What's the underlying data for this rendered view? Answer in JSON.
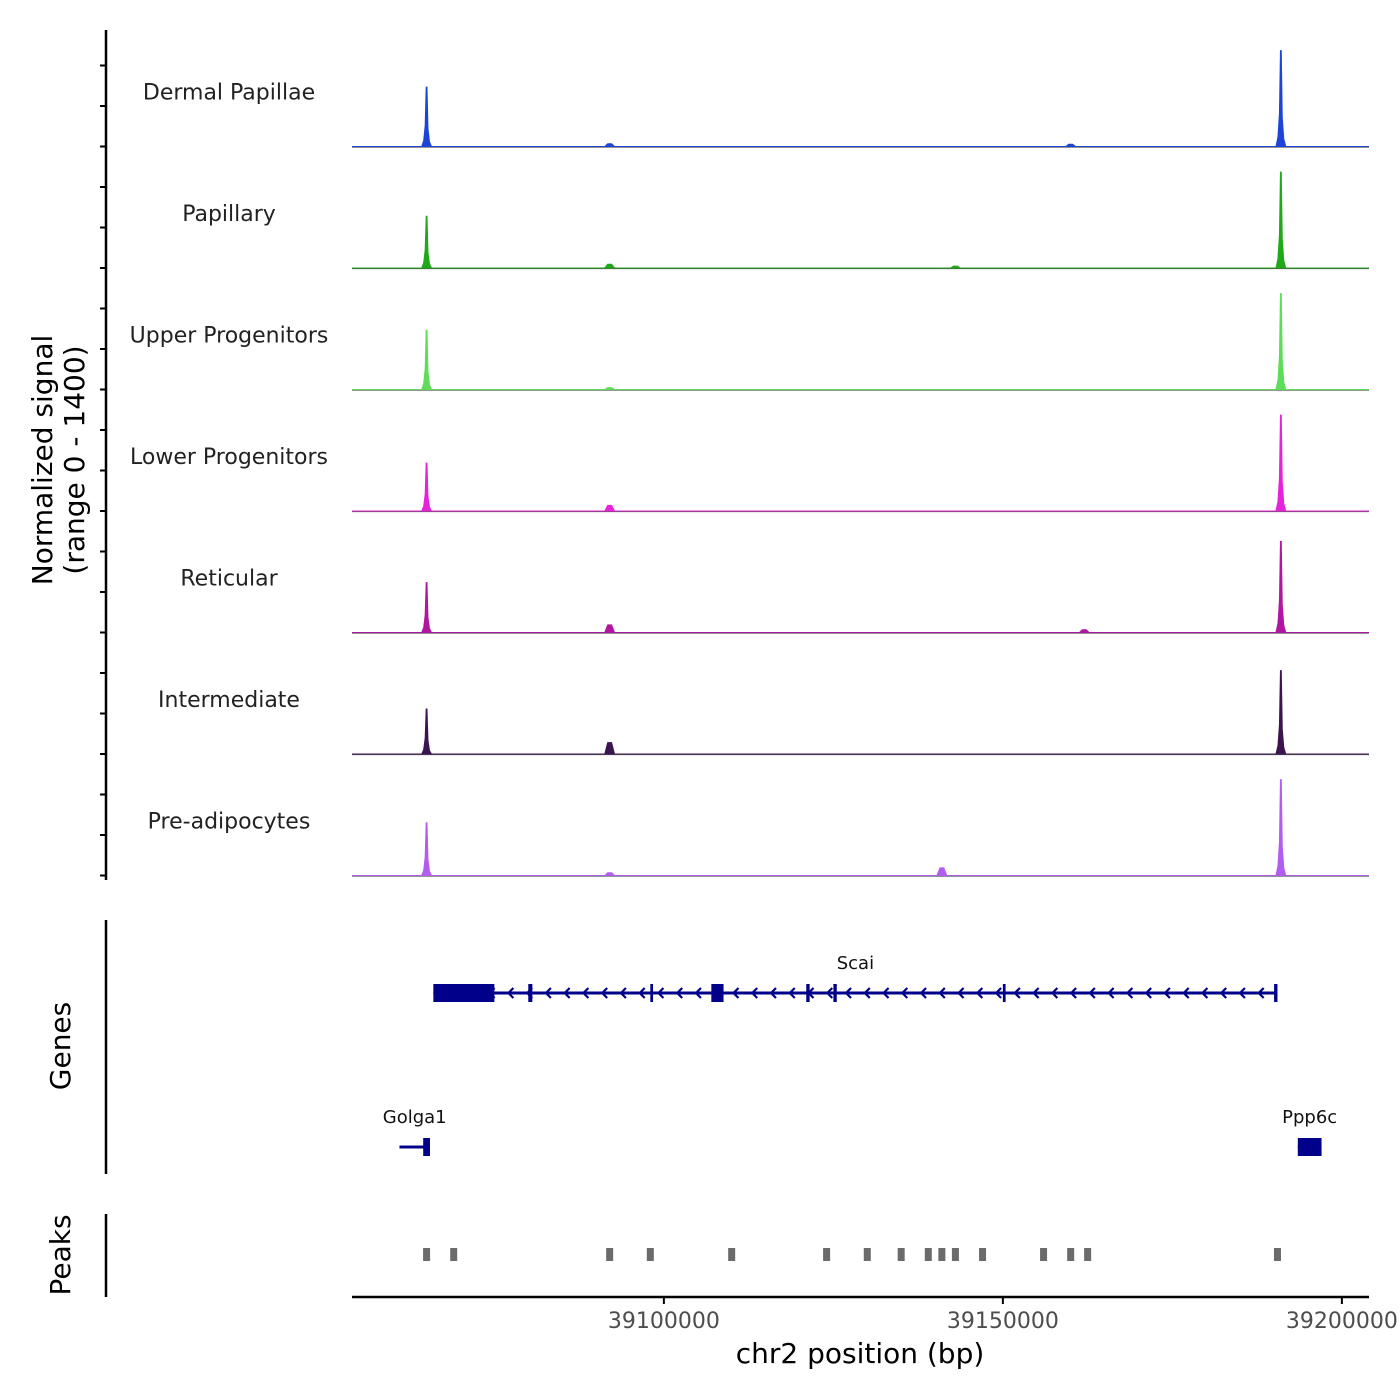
{
  "chart_data": {
    "type": "area",
    "title": "",
    "ylabel_line1": "Normalized signal",
    "ylabel_line2": "(range 0 - 1400)",
    "xlabel": "chr2 position (bp)",
    "chromosome": "chr2",
    "xlim": [
      39054000,
      39204000
    ],
    "ylim": [
      0,
      1400
    ],
    "xticks": [
      "39100000",
      "39150000",
      "39200000"
    ],
    "xtick_values": [
      39100000,
      39150000,
      39200000
    ],
    "tracks": [
      {
        "name": "Dermal Papillae",
        "color": "#1c44d6",
        "peaks": [
          {
            "pos": 39065000,
            "height": 0.62
          },
          {
            "pos": 39191000,
            "height": 1.0
          },
          {
            "pos": 39092000,
            "height": 0.03
          },
          {
            "pos": 39160000,
            "height": 0.025
          }
        ]
      },
      {
        "name": "Papillary",
        "color": "#20a81a",
        "peaks": [
          {
            "pos": 39065000,
            "height": 0.54
          },
          {
            "pos": 39191000,
            "height": 1.0
          },
          {
            "pos": 39092000,
            "height": 0.04
          },
          {
            "pos": 39143000,
            "height": 0.02
          }
        ]
      },
      {
        "name": "Upper Progenitors",
        "color": "#5fdc5a",
        "peaks": [
          {
            "pos": 39065000,
            "height": 0.62
          },
          {
            "pos": 39191000,
            "height": 1.0
          },
          {
            "pos": 39092000,
            "height": 0.02
          }
        ]
      },
      {
        "name": "Lower Progenitors",
        "color": "#e523d8",
        "peaks": [
          {
            "pos": 39065000,
            "height": 0.5
          },
          {
            "pos": 39191000,
            "height": 1.0
          },
          {
            "pos": 39092000,
            "height": 0.06
          }
        ]
      },
      {
        "name": "Reticular",
        "color": "#b0169f",
        "peaks": [
          {
            "pos": 39065000,
            "height": 0.52
          },
          {
            "pos": 39191000,
            "height": 0.95
          },
          {
            "pos": 39092000,
            "height": 0.08
          },
          {
            "pos": 39162000,
            "height": 0.03
          }
        ]
      },
      {
        "name": "Intermediate",
        "color": "#3b1550",
        "peaks": [
          {
            "pos": 39065000,
            "height": 0.47
          },
          {
            "pos": 39191000,
            "height": 0.87
          },
          {
            "pos": 39092000,
            "height": 0.12
          }
        ]
      },
      {
        "name": "Pre-adipocytes",
        "color": "#b35cf0",
        "peaks": [
          {
            "pos": 39065000,
            "height": 0.55
          },
          {
            "pos": 39191000,
            "height": 1.0
          },
          {
            "pos": 39092000,
            "height": 0.03
          },
          {
            "pos": 39141000,
            "height": 0.08
          }
        ]
      }
    ],
    "genes_label": "Genes",
    "genes": [
      {
        "name": "Scai",
        "start": 39066000,
        "end": 39190500,
        "strand": "-",
        "row": 0,
        "exons": [
          [
            39066000,
            39075000
          ],
          [
            39080000,
            39080600
          ],
          [
            39098000,
            39098400
          ],
          [
            39107000,
            39108800
          ],
          [
            39121000,
            39121500
          ],
          [
            39125000,
            39125500
          ],
          [
            39150000,
            39150400
          ],
          [
            39190000,
            39190500
          ]
        ]
      },
      {
        "name": "Golga1",
        "start": 39061000,
        "end": 39065500,
        "strand": "-",
        "row": 1,
        "exons": [
          [
            39064500,
            39065500
          ]
        ]
      },
      {
        "name": "Ppp6c",
        "start": 39193500,
        "end": 39197000,
        "strand": "-",
        "row": 1,
        "exons": [
          [
            39193500,
            39197000
          ]
        ]
      }
    ],
    "gene_color": "#00008b",
    "peaks_label": "Peaks",
    "peak_color": "#6b6b6b",
    "peak_regions": [
      39065000,
      39069000,
      39092000,
      39098000,
      39110000,
      39124000,
      39130000,
      39135000,
      39139000,
      39141000,
      39143000,
      39147000,
      39156000,
      39160000,
      39162500,
      39190500
    ]
  }
}
